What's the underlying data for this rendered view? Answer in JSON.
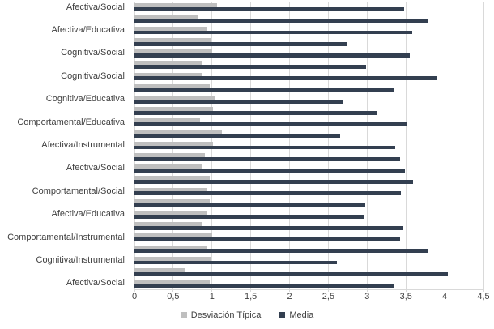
{
  "chart_data": {
    "type": "bar",
    "orientation": "horizontal",
    "title": "",
    "xlabel": "",
    "ylabel": "",
    "xlim": [
      0,
      4.5
    ],
    "grid": true,
    "legend_position": "bottom",
    "colors": {
      "desviacion_tipica": "#bfbfbf",
      "media": "#333f50",
      "gridline": "#d9d9d9",
      "axis_text": "#404040"
    },
    "ticks": [
      {
        "value": 0,
        "label": "0"
      },
      {
        "value": 0.5,
        "label": "0,5"
      },
      {
        "value": 1,
        "label": "1"
      },
      {
        "value": 1.5,
        "label": "1,5"
      },
      {
        "value": 2,
        "label": "2"
      },
      {
        "value": 2.5,
        "label": "2,5"
      },
      {
        "value": 3,
        "label": "3"
      },
      {
        "value": 3.5,
        "label": "3,5"
      },
      {
        "value": 4,
        "label": "4"
      },
      {
        "value": 4.5,
        "label": "4,5"
      }
    ],
    "series_names": [
      "Desviación Típica",
      "Media"
    ],
    "legend": {
      "desviacion_label": "Desviación Típica",
      "media_label": "Media"
    },
    "items": [
      {
        "label": "Afectiva/Social",
        "desviacion_tipica": 1.06,
        "media": 3.48
      },
      {
        "label": "",
        "desviacion_tipica": 0.81,
        "media": 3.78
      },
      {
        "label": "Afectiva/Educativa",
        "desviacion_tipica": 0.94,
        "media": 3.58
      },
      {
        "label": "",
        "desviacion_tipica": 0.99,
        "media": 2.75
      },
      {
        "label": "Cognitiva/Social",
        "desviacion_tipica": 1.0,
        "media": 3.55
      },
      {
        "label": "",
        "desviacion_tipica": 0.87,
        "media": 2.99
      },
      {
        "label": "Cognitiva/Social",
        "desviacion_tipica": 0.87,
        "media": 3.89
      },
      {
        "label": "",
        "desviacion_tipica": 0.97,
        "media": 3.35
      },
      {
        "label": "Cognitiva/Educativa",
        "desviacion_tipica": 1.04,
        "media": 2.69
      },
      {
        "label": "",
        "desviacion_tipica": 1.01,
        "media": 3.13
      },
      {
        "label": "Comportamental/Educativa",
        "desviacion_tipica": 0.85,
        "media": 3.52
      },
      {
        "label": "",
        "desviacion_tipica": 1.13,
        "media": 2.65
      },
      {
        "label": "Afectiva/Instrumental",
        "desviacion_tipica": 1.01,
        "media": 3.36
      },
      {
        "label": "",
        "desviacion_tipica": 0.91,
        "media": 3.42
      },
      {
        "label": "Afectiva/Social",
        "desviacion_tipica": 0.88,
        "media": 3.49
      },
      {
        "label": "",
        "desviacion_tipica": 0.97,
        "media": 3.59
      },
      {
        "label": "Comportamental/Social",
        "desviacion_tipica": 0.94,
        "media": 3.44
      },
      {
        "label": "",
        "desviacion_tipica": 0.97,
        "media": 2.98
      },
      {
        "label": "Afectiva/Educativa",
        "desviacion_tipica": 0.94,
        "media": 2.95
      },
      {
        "label": "",
        "desviacion_tipica": 0.87,
        "media": 3.47
      },
      {
        "label": "Comportamental/Instrumental",
        "desviacion_tipica": 1.0,
        "media": 3.42
      },
      {
        "label": "",
        "desviacion_tipica": 0.93,
        "media": 3.79
      },
      {
        "label": "Cognitiva/Instrumental",
        "desviacion_tipica": 0.99,
        "media": 2.61
      },
      {
        "label": "",
        "desviacion_tipica": 0.65,
        "media": 4.04
      },
      {
        "label": "Afectiva/Social",
        "desviacion_tipica": 0.97,
        "media": 3.34
      }
    ]
  }
}
